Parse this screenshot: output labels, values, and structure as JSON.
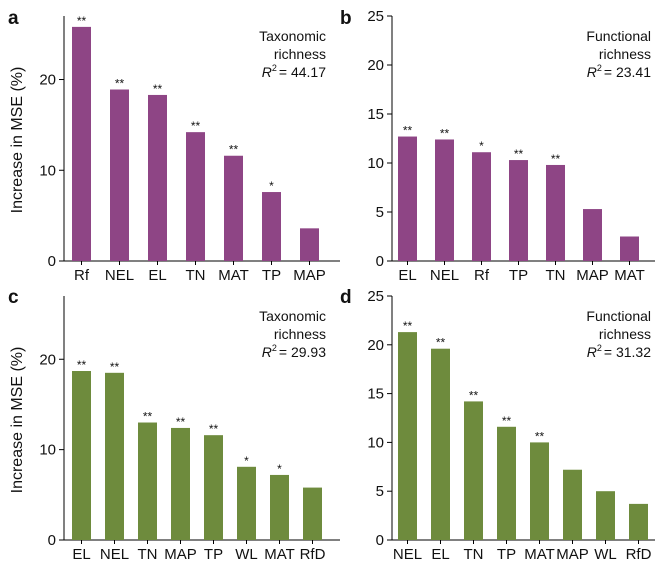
{
  "figure": {
    "ylabel": "Increase in MSE (%)"
  },
  "chart_data": [
    {
      "panel": "a",
      "type": "bar",
      "categories": [
        "Rf",
        "NEL",
        "EL",
        "TN",
        "MAT",
        "TP",
        "MAP"
      ],
      "values": [
        25.8,
        18.9,
        18.3,
        14.2,
        11.6,
        7.6,
        3.6
      ],
      "significance": [
        "**",
        "**",
        "**",
        "**",
        "**",
        "*",
        ""
      ],
      "annotation": [
        "Taxonomic",
        "richness"
      ],
      "r2_label": "R",
      "r2_value": "= 44.17",
      "ylim": [
        0,
        27
      ],
      "yticks": [
        0,
        10,
        20
      ],
      "color": "#8e4585"
    },
    {
      "panel": "b",
      "type": "bar",
      "categories": [
        "EL",
        "NEL",
        "Rf",
        "TP",
        "TN",
        "MAP",
        "MAT"
      ],
      "values": [
        12.7,
        12.4,
        11.1,
        10.3,
        9.8,
        5.3,
        2.5
      ],
      "significance": [
        "**",
        "**",
        "*",
        "**",
        "**",
        "",
        ""
      ],
      "annotation": [
        "Functional",
        "richness"
      ],
      "r2_label": "R",
      "r2_value": "= 23.41",
      "ylim": [
        0,
        25
      ],
      "yticks": [
        0,
        5,
        10,
        15,
        20,
        25
      ],
      "color": "#8e4585"
    },
    {
      "panel": "c",
      "type": "bar",
      "categories": [
        "EL",
        "NEL",
        "TN",
        "MAP",
        "TP",
        "WL",
        "MAT",
        "RfD"
      ],
      "values": [
        18.7,
        18.5,
        13.0,
        12.4,
        11.6,
        8.1,
        7.2,
        5.8
      ],
      "significance": [
        "**",
        "**",
        "**",
        "**",
        "**",
        "*",
        "*",
        ""
      ],
      "annotation": [
        "Taxonomic",
        "richness"
      ],
      "r2_label": "R",
      "r2_value": "= 29.93",
      "ylim": [
        0,
        27
      ],
      "yticks": [
        0,
        10,
        20
      ],
      "color": "#6e8b3d"
    },
    {
      "panel": "d",
      "type": "bar",
      "categories": [
        "NEL",
        "EL",
        "TN",
        "TP",
        "MAT",
        "MAP",
        "WL",
        "RfD"
      ],
      "values": [
        21.3,
        19.6,
        14.2,
        11.6,
        10.0,
        7.2,
        5.0,
        3.7
      ],
      "significance": [
        "**",
        "**",
        "**",
        "**",
        "**",
        "",
        "",
        ""
      ],
      "annotation": [
        "Functional",
        "richness"
      ],
      "r2_label": "R",
      "r2_value": "= 31.32",
      "ylim": [
        0,
        25
      ],
      "yticks": [
        0,
        5,
        10,
        15,
        20,
        25
      ],
      "color": "#6e8b3d"
    }
  ]
}
